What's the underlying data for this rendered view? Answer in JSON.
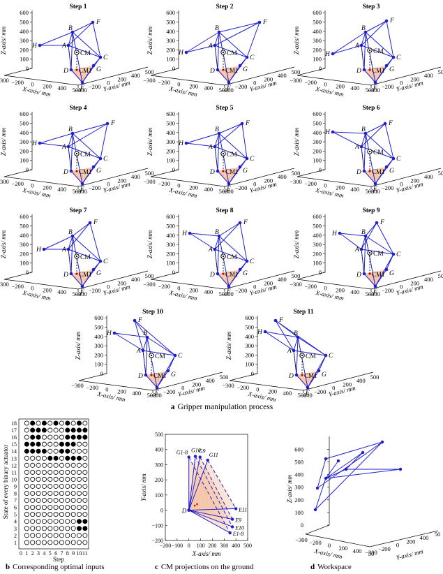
{
  "figure": {
    "caption_a": {
      "letter": "a",
      "text": "Gripper manipulation process"
    },
    "caption_b": {
      "letter": "b",
      "text": "Corresponding optimal inputs"
    },
    "caption_c": {
      "letter": "c",
      "text": "CM projections on the ground"
    },
    "caption_d": {
      "letter": "d",
      "text": "Workspace"
    }
  },
  "axis_text": {
    "x_label": "X-axis/ mm",
    "y_label": "Y-axis/ mm",
    "z_label": "Z-axis/ mm",
    "z_ticks": [
      "0",
      "100",
      "200",
      "300",
      "400",
      "500",
      "600"
    ],
    "x_ticks": [
      "-300",
      "-200",
      "0",
      "200",
      "400",
      "500"
    ],
    "y_ticks": [
      "-300",
      "-200",
      "0",
      "200",
      "400",
      "500"
    ]
  },
  "point_labels": {
    "A": "A",
    "B": "B",
    "C": "C",
    "D": "D",
    "E": "E",
    "F": "F",
    "G": "G",
    "H": "H",
    "CM": "CM",
    "CM1": "CM1"
  },
  "steps": [
    {
      "title": "Step 1",
      "pts": {
        "A": [
          98,
          65
        ],
        "B": [
          104,
          46
        ],
        "C": [
          144,
          82
        ],
        "D": [
          102,
          100
        ],
        "E": [
          118,
          118
        ],
        "F": [
          133,
          32
        ],
        "G": [
          134,
          94
        ],
        "H": [
          57,
          65
        ],
        "CM": [
          110,
          75
        ],
        "CM1": [
          116,
          100
        ]
      }
    },
    {
      "title": "Step 2",
      "pts": {
        "A": [
          98,
          65
        ],
        "B": [
          104,
          46
        ],
        "C": [
          144,
          82
        ],
        "D": [
          102,
          100
        ],
        "E": [
          118,
          118
        ],
        "F": [
          162,
          32
        ],
        "G": [
          134,
          94
        ],
        "H": [
          57,
          75
        ],
        "CM": [
          110,
          75
        ],
        "CM1": [
          116,
          100
        ]
      }
    },
    {
      "title": "Step 3",
      "pts": {
        "A": [
          98,
          65
        ],
        "B": [
          104,
          46
        ],
        "C": [
          144,
          82
        ],
        "D": [
          102,
          100
        ],
        "E": [
          118,
          118
        ],
        "F": [
          134,
          30
        ],
        "G": [
          134,
          94
        ],
        "H": [
          57,
          77
        ],
        "CM": [
          110,
          72
        ],
        "CM1": [
          116,
          100
        ]
      }
    },
    {
      "title": "Step 4",
      "pts": {
        "A": [
          98,
          65
        ],
        "B": [
          104,
          46
        ],
        "C": [
          144,
          82
        ],
        "D": [
          102,
          100
        ],
        "E": [
          118,
          118
        ],
        "F": [
          154,
          32
        ],
        "G": [
          134,
          94
        ],
        "H": [
          57,
          60
        ],
        "CM": [
          110,
          75
        ],
        "CM1": [
          116,
          100
        ]
      }
    },
    {
      "title": "Step 5",
      "pts": {
        "A": [
          98,
          65
        ],
        "B": [
          104,
          46
        ],
        "C": [
          144,
          82
        ],
        "D": [
          102,
          100
        ],
        "E": [
          118,
          118
        ],
        "F": [
          137,
          32
        ],
        "G": [
          134,
          94
        ],
        "H": [
          57,
          60
        ],
        "CM": [
          110,
          75
        ],
        "CM1": [
          116,
          100
        ]
      }
    },
    {
      "title": "Step 6",
      "pts": {
        "A": [
          98,
          65
        ],
        "B": [
          104,
          46
        ],
        "C": [
          144,
          82
        ],
        "D": [
          102,
          100
        ],
        "E": [
          118,
          118
        ],
        "F": [
          132,
          32
        ],
        "G": [
          134,
          94
        ],
        "H": [
          57,
          44
        ],
        "CM": [
          110,
          72
        ],
        "CM1": [
          116,
          100
        ]
      }
    },
    {
      "title": "Step 7",
      "pts": {
        "A": [
          98,
          65
        ],
        "B": [
          104,
          46
        ],
        "C": [
          144,
          82
        ],
        "D": [
          102,
          100
        ],
        "E": [
          118,
          118
        ],
        "F": [
          129,
          27
        ],
        "G": [
          134,
          94
        ],
        "H": [
          63,
          65
        ],
        "CM": [
          110,
          75
        ],
        "CM1": [
          116,
          100
        ]
      }
    },
    {
      "title": "Step 8",
      "pts": {
        "A": [
          98,
          65
        ],
        "B": [
          104,
          46
        ],
        "C": [
          144,
          82
        ],
        "D": [
          102,
          100
        ],
        "E": [
          118,
          118
        ],
        "F": [
          134,
          27
        ],
        "G": [
          134,
          94
        ],
        "H": [
          62,
          42
        ],
        "CM": [
          110,
          75
        ],
        "CM1": [
          116,
          100
        ]
      }
    },
    {
      "title": "Step 9",
      "pts": {
        "A": [
          98,
          65
        ],
        "B": [
          104,
          46
        ],
        "C": [
          144,
          72
        ],
        "D": [
          102,
          100
        ],
        "E": [
          118,
          118
        ],
        "F": [
          120,
          27
        ],
        "G": [
          134,
          94
        ],
        "H": [
          67,
          42
        ],
        "CM": [
          110,
          70
        ],
        "CM1": [
          116,
          100
        ]
      }
    },
    {
      "title": "Step 10",
      "pts": {
        "A": [
          98,
          65
        ],
        "B": [
          104,
          46
        ],
        "C": [
          144,
          72
        ],
        "D": [
          102,
          100
        ],
        "E": [
          118,
          118
        ],
        "F": [
          86,
          22
        ],
        "G": [
          134,
          94
        ],
        "H": [
          57,
          40
        ],
        "CM": [
          110,
          72
        ],
        "CM1": [
          116,
          100
        ]
      }
    },
    {
      "title": "Step 11",
      "pts": {
        "A": [
          98,
          65
        ],
        "B": [
          104,
          46
        ],
        "C": [
          144,
          72
        ],
        "D": [
          102,
          100
        ],
        "E": [
          118,
          118
        ],
        "F": [
          72,
          22
        ],
        "G": [
          134,
          94
        ],
        "H": [
          57,
          38
        ],
        "CM": [
          110,
          72
        ],
        "CM1": [
          116,
          100
        ]
      }
    }
  ],
  "panel_b": {
    "ylabel": "State of every binary actuator",
    "xlabel": "Step",
    "x_ticks": [
      "0",
      "1",
      "2",
      "3",
      "4",
      "5",
      "6",
      "7",
      "8",
      "9",
      "10",
      "11"
    ],
    "y_ticks": [
      "1",
      "2",
      "3",
      "4",
      "5",
      "6",
      "7",
      "8",
      "9",
      "10",
      "11",
      "12",
      "13",
      "14",
      "15",
      "16",
      "17",
      "18"
    ],
    "filled": [
      [
        2,
        18
      ],
      [
        4,
        18
      ],
      [
        6,
        18
      ],
      [
        8,
        18
      ],
      [
        10,
        18
      ],
      [
        2,
        17
      ],
      [
        3,
        17
      ],
      [
        4,
        17
      ],
      [
        8,
        17
      ],
      [
        9,
        17
      ],
      [
        10,
        17
      ],
      [
        11,
        17
      ],
      [
        2,
        16
      ],
      [
        3,
        16
      ],
      [
        8,
        16
      ],
      [
        9,
        16
      ],
      [
        10,
        16
      ],
      [
        11,
        16
      ],
      [
        1,
        15
      ],
      [
        2,
        15
      ],
      [
        3,
        15
      ],
      [
        7,
        15
      ],
      [
        8,
        15
      ],
      [
        9,
        15
      ],
      [
        1,
        14
      ],
      [
        2,
        14
      ],
      [
        3,
        14
      ],
      [
        4,
        14
      ],
      [
        7,
        14
      ],
      [
        8,
        14
      ],
      [
        5,
        13
      ],
      [
        6,
        13
      ],
      [
        8,
        13
      ],
      [
        9,
        13
      ],
      [
        10,
        13
      ],
      [
        10,
        4
      ],
      [
        11,
        4
      ],
      [
        10,
        3
      ],
      [
        11,
        3
      ]
    ]
  },
  "panel_c": {
    "xlabel": "X-axis/ mm",
    "ylabel": "Y-axis/ mm",
    "x_ticks": [
      "-200",
      "-100",
      "0",
      "100",
      "200",
      "300",
      "400",
      "500"
    ],
    "y_ticks": [
      "-200",
      "-100",
      "0",
      "100",
      "200",
      "300",
      "400",
      "500"
    ],
    "point_labels": [
      "G1-8",
      "G10",
      "G9",
      "G11",
      "D",
      "E11",
      "E9",
      "E10",
      "E1-8"
    ],
    "chart_data": {
      "type": "scatter",
      "xlabel": "X-axis/ mm",
      "ylabel": "Y-axis/ mm",
      "xlim": [
        -200,
        500
      ],
      "ylim": [
        -200,
        500
      ],
      "D": [
        0,
        0
      ],
      "G": [
        [
          0,
          350
        ],
        [
          55,
          355
        ],
        [
          95,
          350
        ],
        [
          160,
          330
        ]
      ],
      "E": [
        [
          400,
          10
        ],
        [
          370,
          -60
        ],
        [
          370,
          -110
        ],
        [
          350,
          -150
        ]
      ],
      "CM_projections": [
        [
          50,
          30
        ],
        [
          70,
          40
        ]
      ]
    }
  },
  "panel_d": {
    "segments": [
      [
        [
          455,
          699
        ],
        [
          467,
          657
        ]
      ],
      [
        [
          467,
          657
        ],
        [
          548,
          633
        ]
      ],
      [
        [
          455,
          699
        ],
        [
          548,
          633
        ]
      ],
      [
        [
          467,
          685
        ],
        [
          496,
          672
        ]
      ],
      [
        [
          467,
          685
        ],
        [
          574,
          672
        ]
      ],
      [
        [
          496,
          672
        ],
        [
          574,
          672
        ]
      ],
      [
        [
          467,
          685
        ],
        [
          520,
          648
        ]
      ],
      [
        [
          467,
          685
        ],
        [
          485,
          660
        ]
      ],
      [
        [
          520,
          648
        ],
        [
          496,
          672
        ]
      ],
      [
        [
          467,
          685
        ],
        [
          452,
          730
        ]
      ],
      [
        [
          452,
          730
        ],
        [
          548,
          633
        ]
      ]
    ]
  },
  "colors": {
    "blue": "#1f1fd0",
    "fill": "#f5c3a4",
    "dash": "#222",
    "dot": "#000"
  }
}
